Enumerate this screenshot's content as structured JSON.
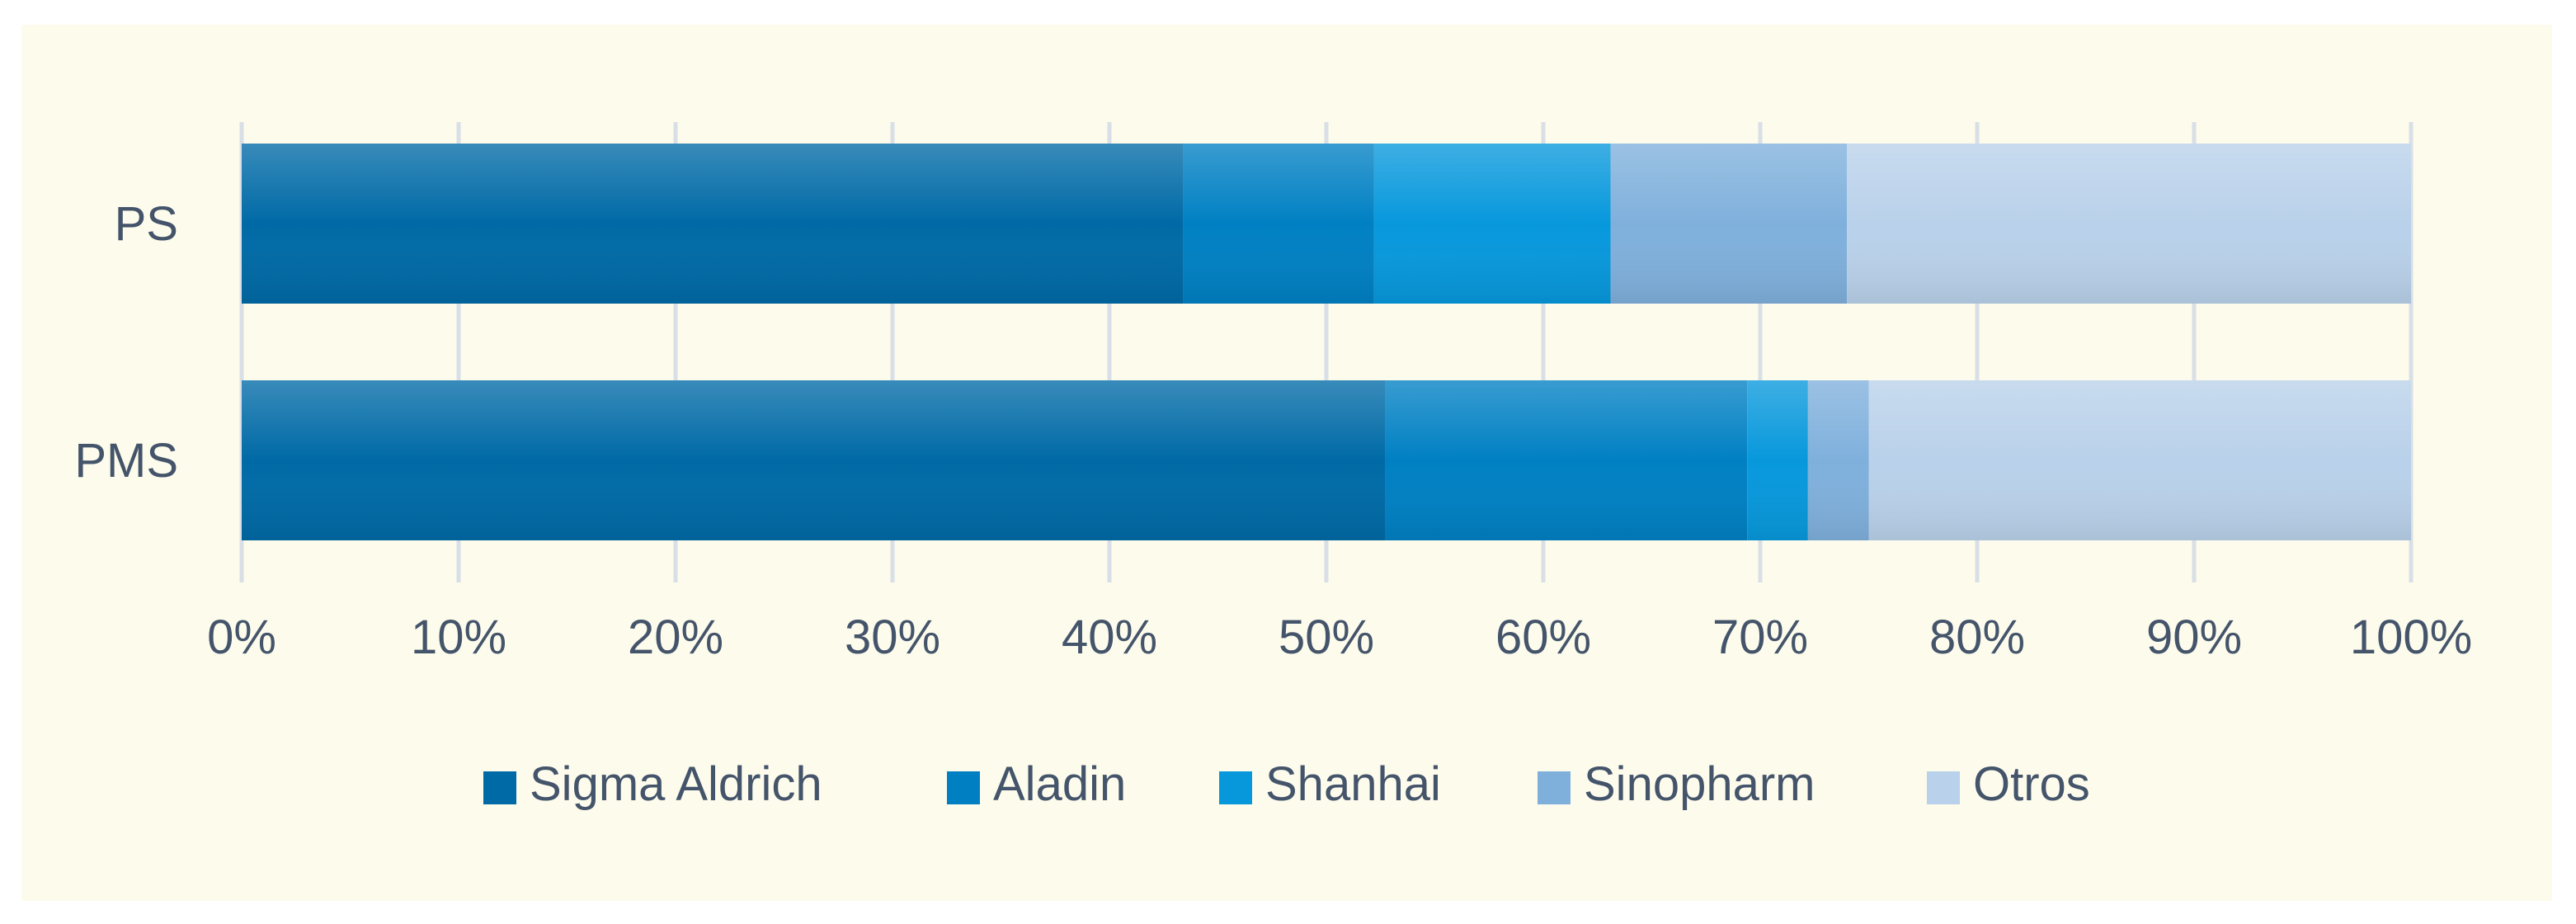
{
  "chart_data": {
    "type": "bar",
    "orientation": "horizontal",
    "stacked": "percent",
    "categories": [
      "PS",
      "PMS"
    ],
    "series": [
      {
        "name": "Sigma Aldrich",
        "values": [
          43.4,
          52.7
        ],
        "color": "#006aa6"
      },
      {
        "name": "Aladin",
        "values": [
          8.8,
          16.7
        ],
        "color": "#0080c3"
      },
      {
        "name": "Shanhai",
        "values": [
          10.9,
          2.8
        ],
        "color": "#0798dc"
      },
      {
        "name": "Sinopharm",
        "values": [
          10.9,
          2.8
        ],
        "color": "#7fb0dc"
      },
      {
        "name": "Otros",
        "values": [
          26.0,
          25.0
        ],
        "color": "#b9d1ea"
      }
    ],
    "xlim": [
      0,
      100
    ],
    "xticks": [
      "0%",
      "10%",
      "20%",
      "30%",
      "40%",
      "50%",
      "60%",
      "70%",
      "80%",
      "90%",
      "100%"
    ],
    "grid": "vertical",
    "legend": "bottom",
    "title": "",
    "xlabel": "",
    "ylabel": ""
  },
  "colors": {
    "panel_background": "#fdfbec",
    "gridline": "#d9dfe6",
    "text": "#44546a"
  }
}
